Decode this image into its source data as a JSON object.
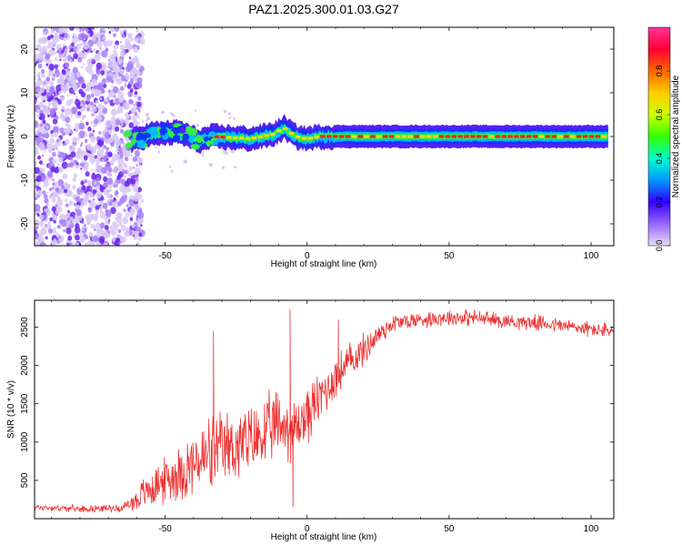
{
  "title": "PAZ1.2025.300.01.03.G27",
  "chart_data": [
    {
      "type": "heatmap",
      "name": "spectrogram",
      "xlabel": "Height of straight line (km)",
      "ylabel": "Frequency (Hz)",
      "xlim": [
        -96,
        108
      ],
      "ylim": [
        -25,
        25
      ],
      "xticks": [
        -50,
        0,
        50,
        100
      ],
      "xtick_labels": [
        "-50",
        "0",
        "50",
        "100"
      ],
      "yticks": [
        -20,
        -10,
        0,
        10,
        20
      ],
      "ytick_labels": [
        "-20",
        "-10",
        "0",
        "10",
        "20"
      ],
      "colorbar": {
        "label": "Normalized spectral amplitude",
        "range": [
          0,
          1
        ],
        "ticks": [
          0.0,
          0.2,
          0.4,
          0.6,
          0.8
        ],
        "tick_labels": [
          "0.0",
          "0.2",
          "0.4",
          "0.6",
          "0.8"
        ],
        "colors": [
          "#e6dcf5",
          "#9966ff",
          "#3300ff",
          "#0099ff",
          "#00ffcc",
          "#33ff00",
          "#ccff00",
          "#ffcc00",
          "#ff6600",
          "#ff0033",
          "#ff3399"
        ]
      },
      "ridge": {
        "description_points_x": [
          -62,
          -55,
          -45,
          -38,
          -33,
          -20,
          -12,
          -8,
          -4,
          0,
          5,
          20,
          50,
          80,
          106
        ],
        "description_points_y": [
          -1,
          0.5,
          1,
          -1,
          0,
          -0.5,
          0.5,
          2,
          0,
          -0.5,
          0,
          0,
          0,
          0,
          0
        ]
      },
      "noise_region_x": [
        -96,
        -62
      ]
    },
    {
      "type": "line",
      "name": "snr",
      "xlabel": "Height of straight line (km)",
      "ylabel": "SNR (10 * v/v)",
      "xlim": [
        -96,
        108
      ],
      "ylim": [
        0,
        2850
      ],
      "xticks": [
        -50,
        0,
        50,
        100
      ],
      "xtick_labels": [
        "-50",
        "0",
        "50",
        "100"
      ],
      "yticks": [
        500,
        1000,
        1500,
        2000,
        2500
      ],
      "ytick_labels": [
        "500",
        "1000",
        "1500",
        "2000",
        "2500"
      ],
      "color": "#ee3333",
      "envelope_x": [
        -96,
        -80,
        -65,
        -60,
        -55,
        -50,
        -45,
        -40,
        -35,
        -30,
        -25,
        -20,
        -15,
        -10,
        -5,
        0,
        5,
        10,
        15,
        20,
        25,
        30,
        40,
        50,
        60,
        70,
        80,
        90,
        100,
        108
      ],
      "envelope_mean": [
        150,
        130,
        140,
        250,
        400,
        500,
        600,
        700,
        800,
        900,
        950,
        1000,
        1100,
        1250,
        1150,
        1350,
        1600,
        1850,
        2050,
        2200,
        2400,
        2550,
        2600,
        2630,
        2620,
        2580,
        2560,
        2520,
        2470,
        2450
      ],
      "envelope_noise": [
        50,
        50,
        60,
        200,
        300,
        350,
        450,
        500,
        650,
        550,
        600,
        550,
        550,
        550,
        500,
        450,
        400,
        350,
        300,
        250,
        200,
        150,
        130,
        130,
        130,
        120,
        120,
        120,
        120,
        120
      ],
      "spikes": [
        {
          "x": -33,
          "y": 2450
        },
        {
          "x": -6,
          "y": 2730
        },
        {
          "x": 11,
          "y": 2600
        },
        {
          "x": -5,
          "y": 150
        }
      ]
    }
  ]
}
